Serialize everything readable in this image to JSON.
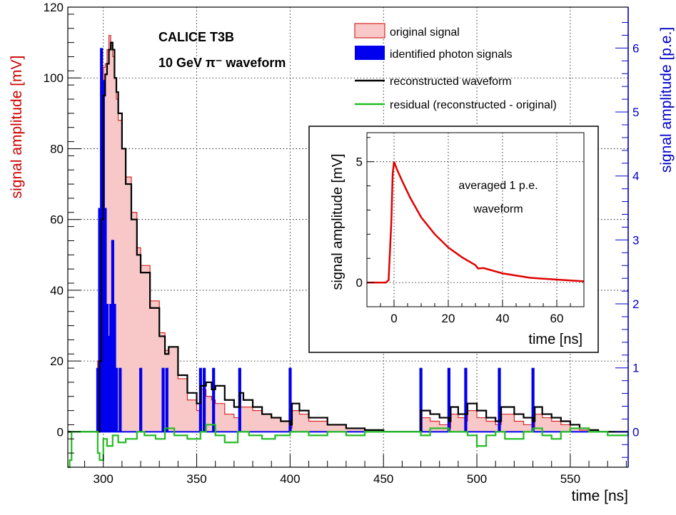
{
  "chart_data": {
    "type": "line",
    "title": [
      "CALICE T3B",
      "10 GeV π⁻ waveform"
    ],
    "xlabel": "time [ns]",
    "ylabel_left": "signal amplitude [mV]",
    "ylabel_right": "signal amplitude [p.e.]",
    "xlim": [
      281,
      581
    ],
    "ylim_left": [
      -10,
      120
    ],
    "ylim_right": [
      -0.5534,
      6.64
    ],
    "x_ticks": [
      300,
      350,
      400,
      450,
      500,
      550
    ],
    "y_ticks_left": [
      0,
      20,
      40,
      60,
      80,
      100,
      120
    ],
    "y_ticks_right": [
      0,
      1,
      2,
      3,
      4,
      5,
      6
    ],
    "grid": true,
    "legend_position": "top-right",
    "colors": {
      "original": "#d62728",
      "original_fill": "#f8c8c8",
      "photons": "#0000ee",
      "reconstructed": "#000000",
      "residual": "#22bb22",
      "left_axis": "#cc0000",
      "right_axis": "#0000cc"
    },
    "series": [
      {
        "name": "original signal",
        "style": "filled-step",
        "x": [
          281,
          296,
          297,
          298,
          299,
          300,
          301,
          302,
          303,
          304,
          305,
          306,
          307,
          308,
          310,
          312,
          315,
          318,
          320,
          325,
          330,
          333,
          335,
          340,
          345,
          350,
          352,
          355,
          358,
          360,
          365,
          370,
          373,
          375,
          380,
          385,
          390,
          395,
          400,
          401,
          405,
          410,
          420,
          430,
          440,
          450,
          460,
          467,
          470,
          475,
          480,
          485,
          486,
          490,
          494,
          495,
          500,
          505,
          510,
          513,
          515,
          520,
          525,
          530,
          531,
          535,
          540,
          545,
          550,
          555,
          560,
          565,
          570,
          575,
          581
        ],
        "y": [
          0,
          0,
          20,
          55,
          88,
          103,
          104,
          108,
          112,
          110,
          106,
          100,
          94,
          88,
          80,
          72,
          62,
          52,
          47,
          37,
          28,
          23,
          24,
          15,
          9,
          6,
          12,
          10,
          9,
          8,
          5,
          4,
          7,
          7,
          6,
          5,
          4,
          3,
          1,
          6,
          5,
          3,
          2,
          1,
          0.5,
          0,
          0,
          0,
          4,
          3,
          2,
          1,
          5,
          4,
          3,
          6,
          4,
          3,
          2,
          5,
          5,
          3,
          2,
          1,
          5,
          4,
          3,
          2,
          1,
          0.5,
          0,
          0,
          0,
          0,
          0
        ]
      },
      {
        "name": "identified photon signals",
        "style": "bars",
        "unit": "p.e.",
        "x": [
          297,
          298,
          299,
          300,
          301,
          302,
          303,
          304,
          305,
          306,
          307,
          309,
          320,
          332,
          334,
          352,
          354,
          359,
          373,
          400,
          470,
          485,
          494,
          512,
          530
        ],
        "values": [
          1,
          3.5,
          6,
          5.5,
          3.5,
          2,
          1.5,
          2,
          3,
          2,
          1,
          1,
          1,
          1,
          1,
          1,
          1,
          1,
          1,
          1,
          1,
          1,
          1,
          1,
          1
        ]
      },
      {
        "name": "reconstructed waveform",
        "style": "step",
        "x": [
          281,
          296,
          297,
          298,
          299,
          300,
          301,
          302,
          303,
          304,
          305,
          306,
          307,
          308,
          310,
          312,
          315,
          318,
          320,
          325,
          330,
          333,
          335,
          340,
          345,
          350,
          352,
          355,
          358,
          360,
          365,
          370,
          373,
          375,
          380,
          385,
          390,
          395,
          400,
          401,
          405,
          410,
          420,
          430,
          440,
          450,
          460,
          467,
          470,
          475,
          480,
          485,
          486,
          490,
          494,
          495,
          500,
          505,
          510,
          513,
          515,
          520,
          525,
          530,
          531,
          535,
          540,
          545,
          550,
          555,
          560,
          565,
          570,
          575,
          581
        ],
        "y": [
          0,
          0,
          0,
          20,
          60,
          95,
          101,
          104,
          108,
          110,
          108,
          100,
          96,
          90,
          80,
          70,
          60,
          50,
          45,
          35,
          27,
          22,
          24,
          16,
          11,
          8,
          13,
          14,
          12,
          13,
          9,
          7,
          11,
          9,
          7,
          5,
          4,
          3,
          2,
          8,
          6,
          4,
          2,
          1,
          0.5,
          0,
          0,
          0,
          6,
          5,
          4,
          3,
          7,
          5,
          5,
          8,
          6,
          4,
          3,
          7,
          7,
          5,
          4,
          3,
          7,
          5,
          4,
          3,
          2,
          1,
          0.5,
          0,
          0,
          0,
          0
        ]
      },
      {
        "name": "residual (reconstructed - original)",
        "style": "step",
        "x": [
          281,
          282,
          283,
          290,
          296,
          297,
          298,
          300,
          302,
          305,
          308,
          312,
          318,
          322,
          328,
          333,
          338,
          345,
          352,
          355,
          360,
          365,
          372,
          378,
          385,
          392,
          400,
          410,
          420,
          430,
          440,
          450,
          460,
          470,
          475,
          485,
          495,
          500,
          505,
          510,
          515,
          525,
          530,
          535,
          540,
          545,
          550,
          560,
          570,
          581
        ],
        "y": [
          -10,
          -8,
          0,
          0,
          0,
          -6,
          -8,
          -2,
          -4,
          -1,
          -3,
          -2,
          0,
          -1,
          -2,
          1,
          -1,
          -2,
          0,
          2,
          -1,
          -3,
          0,
          -1,
          -2,
          -1,
          0,
          -1,
          0,
          -1,
          0,
          0,
          0,
          -1,
          1,
          0,
          -1,
          -4,
          -1,
          0,
          -2,
          0,
          1,
          -1,
          -2,
          0,
          1,
          0,
          -1,
          0
        ]
      }
    ]
  },
  "title_lines": [
    "CALICE T3B",
    "10 GeV π⁻ waveform"
  ],
  "legend": [
    {
      "label": "original signal",
      "kind": "fill"
    },
    {
      "label": "identified photon signals",
      "kind": "bar"
    },
    {
      "label": "reconstructed waveform",
      "kind": "line-black"
    },
    {
      "label": "residual (reconstructed - original)",
      "kind": "line-green"
    }
  ],
  "inset": {
    "title_lines": [
      "averaged 1 p.e.",
      "waveform"
    ],
    "xlabel": "time [ns]",
    "ylabel": "signal amplitude [mV]",
    "xlim": [
      -10,
      70
    ],
    "ylim": [
      -1,
      6.2
    ],
    "x_ticks": [
      0,
      20,
      40,
      60
    ],
    "y_ticks": [
      0,
      5
    ],
    "line_color": "#e00000",
    "x": [
      -10,
      -3,
      -2,
      -1,
      -0.5,
      0,
      1,
      3,
      6,
      10,
      15,
      20,
      25,
      30,
      31,
      33,
      40,
      50,
      60,
      70
    ],
    "y": [
      0,
      0,
      0.1,
      2.5,
      4.5,
      5,
      4.7,
      4.2,
      3.5,
      2.7,
      2.0,
      1.45,
      1.05,
      0.72,
      0.58,
      0.6,
      0.38,
      0.2,
      0.12,
      0.05
    ]
  }
}
